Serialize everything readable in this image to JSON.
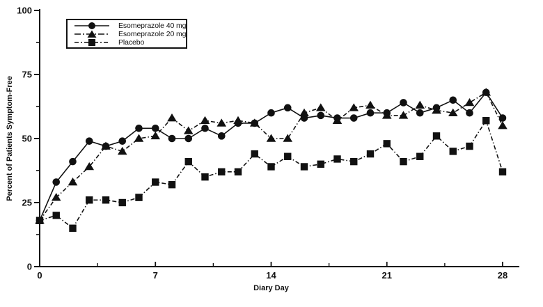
{
  "chart_data": {
    "type": "line",
    "title": "",
    "xlabel": "Diary Day",
    "ylabel": "Percent of Patients Symptom-Free",
    "xlim": [
      0,
      29
    ],
    "ylim": [
      0,
      100
    ],
    "grid": false,
    "legend_position": "top-left",
    "x_major_ticks": [
      0,
      7,
      14,
      21,
      28
    ],
    "x_minor_ticks": [
      3.5,
      10.5,
      17.5,
      24.5
    ],
    "y_major_ticks": [
      0,
      25,
      50,
      75,
      100
    ],
    "y_minor_ticks": [
      12.5,
      37.5,
      62.5,
      87.5
    ],
    "x": [
      0,
      1,
      2,
      3,
      4,
      5,
      6,
      7,
      8,
      9,
      10,
      11,
      12,
      13,
      14,
      15,
      16,
      17,
      18,
      19,
      20,
      21,
      22,
      23,
      24,
      25,
      26,
      27,
      28
    ],
    "series": [
      {
        "name": "Esomeprazole 40 mg",
        "marker": "circle",
        "line_style": "solid",
        "values": [
          18,
          33,
          41,
          49,
          47,
          49,
          54,
          54,
          50,
          50,
          54,
          51,
          56,
          56,
          60,
          62,
          58,
          59,
          58,
          58,
          60,
          60,
          64,
          60,
          62,
          65,
          60,
          68,
          58
        ]
      },
      {
        "name": "Esomeprazole 20 mg",
        "marker": "triangle",
        "line_style": "dashdot",
        "values": [
          18,
          27,
          33,
          39,
          47,
          45,
          50,
          51,
          58,
          53,
          57,
          56,
          57,
          56,
          50,
          50,
          60,
          62,
          57,
          62,
          63,
          59,
          59,
          63,
          61,
          60,
          64,
          68,
          55
        ]
      },
      {
        "name": "Placebo",
        "marker": "square",
        "line_style": "dashdot",
        "values": [
          18,
          20,
          15,
          26,
          26,
          25,
          27,
          33,
          32,
          41,
          35,
          37,
          37,
          44,
          39,
          43,
          39,
          40,
          42,
          41,
          44,
          48,
          41,
          43,
          51,
          45,
          47,
          57,
          37
        ]
      }
    ],
    "colors": {
      "line": "#111111",
      "background": "#ffffff"
    }
  }
}
